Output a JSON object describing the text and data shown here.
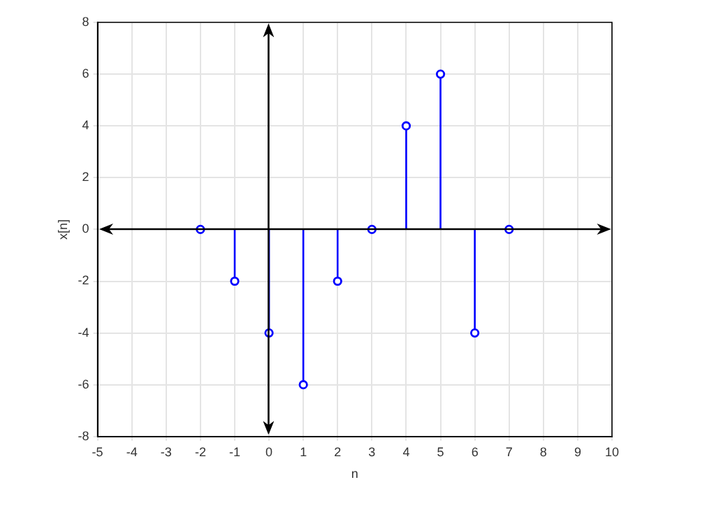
{
  "chart_data": {
    "type": "lollipop",
    "xlabel": "n",
    "ylabel": "x[n]",
    "x": [
      -2,
      -1,
      0,
      1,
      2,
      3,
      4,
      5,
      6,
      7
    ],
    "series": [
      {
        "color": "#0000ff",
        "values": [
          0,
          -2,
          -4,
          -6,
          -2,
          0,
          4,
          6,
          -4,
          0
        ]
      }
    ],
    "xlim": [
      -5,
      10
    ],
    "xticks": [
      -5,
      -4,
      -3,
      -2,
      -1,
      0,
      1,
      2,
      3,
      4,
      5,
      6,
      7,
      8,
      9,
      10
    ],
    "ylim": [
      -8,
      8
    ],
    "yticks": [
      -8,
      -6,
      -4,
      -2,
      0,
      2,
      4,
      6,
      8
    ],
    "grid": true,
    "marker": "circle"
  }
}
